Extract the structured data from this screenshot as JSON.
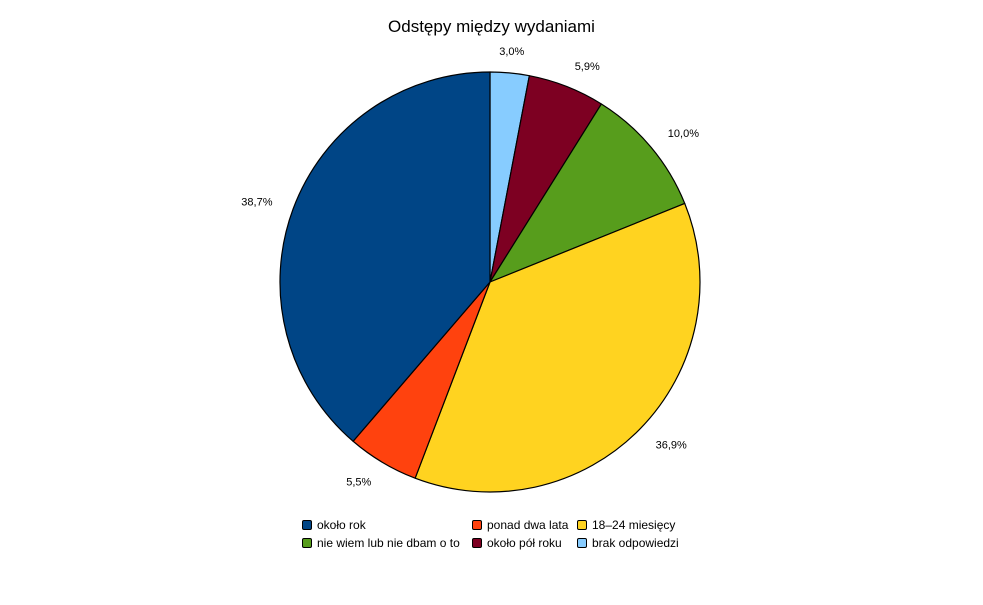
{
  "chart_data": {
    "type": "pie",
    "title": "Odstępy między wydaniami",
    "slices": [
      {
        "name": "brak odpowiedzi",
        "value": 3.0,
        "label": "3,0%",
        "color": "#87CCFF"
      },
      {
        "name": "około pół roku",
        "value": 5.9,
        "label": "5,9%",
        "color": "#7D0022"
      },
      {
        "name": "nie wiem lub nie dbam o to",
        "value": 10.0,
        "label": "10,0%",
        "color": "#579D1C"
      },
      {
        "name": "18–24 miesięcy",
        "value": 36.9,
        "label": "36,9%",
        "color": "#FFD320"
      },
      {
        "name": "ponad dwa lata",
        "value": 5.5,
        "label": "5,5%",
        "color": "#FF420E"
      },
      {
        "name": "około rok",
        "value": 38.7,
        "label": "38,7%",
        "color": "#004586"
      }
    ],
    "start_angle_deg": 0,
    "direction": "clockwise",
    "legend_position": "bottom",
    "legend_order": [
      "około rok",
      "ponad dwa lata",
      "18–24 miesięcy",
      "nie wiem lub nie dbam o to",
      "około pół roku",
      "brak odpowiedzi"
    ]
  }
}
